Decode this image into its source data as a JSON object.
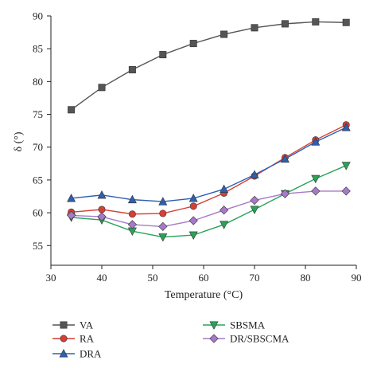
{
  "chart_data": {
    "type": "line",
    "xlabel": "Temperature (°C)",
    "ylabel": "δ (°)",
    "xlim": [
      30,
      90
    ],
    "ylim": [
      52,
      90
    ],
    "xticks": [
      "30",
      "40",
      "50",
      "60",
      "70",
      "80",
      "90"
    ],
    "yticks": [
      "55",
      "60",
      "65",
      "70",
      "75",
      "80",
      "85",
      "90"
    ],
    "grid": false,
    "legend_position": "bottom",
    "x": [
      34,
      40,
      46,
      52,
      58,
      64,
      70,
      76,
      82,
      88
    ],
    "series": [
      {
        "name": "VA",
        "color": "#555555",
        "marker": "square",
        "values": [
          75.7,
          79.1,
          81.8,
          84.1,
          85.8,
          87.2,
          88.2,
          88.8,
          89.1,
          89.0
        ]
      },
      {
        "name": "RA",
        "color": "#d63f35",
        "marker": "circle",
        "values": [
          60.1,
          60.5,
          59.8,
          59.9,
          61.0,
          63.0,
          65.6,
          68.4,
          71.1,
          73.4
        ]
      },
      {
        "name": "DRA",
        "color": "#2e5fb0",
        "marker": "triangle-up",
        "values": [
          62.2,
          62.7,
          62.0,
          61.7,
          62.2,
          63.6,
          65.8,
          68.2,
          70.8,
          73.0
        ]
      },
      {
        "name": "SBSMA",
        "color": "#2aa35a",
        "marker": "triangle-down",
        "values": [
          59.3,
          58.9,
          57.2,
          56.3,
          56.6,
          58.2,
          60.5,
          62.9,
          65.2,
          67.2
        ]
      },
      {
        "name": "DR/SBSCMA",
        "color": "#a779c9",
        "marker": "diamond",
        "values": [
          59.6,
          59.4,
          58.2,
          57.9,
          58.8,
          60.4,
          61.9,
          62.9,
          63.3,
          63.3
        ]
      }
    ]
  }
}
